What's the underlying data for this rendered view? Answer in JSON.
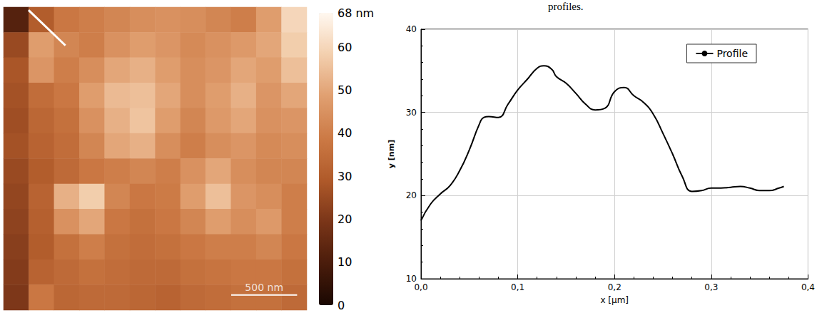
{
  "caption": "profiles.",
  "afm_image": {
    "type": "heatmap",
    "image_size_nm": 2300,
    "heights_nm": [
      [
        12,
        30,
        38,
        40,
        42,
        44,
        45,
        44,
        42,
        40,
        48,
        60
      ],
      [
        25,
        48,
        42,
        40,
        45,
        48,
        46,
        43,
        45,
        47,
        50,
        58
      ],
      [
        28,
        46,
        40,
        44,
        50,
        52,
        48,
        44,
        46,
        50,
        48,
        55
      ],
      [
        27,
        35,
        38,
        48,
        54,
        55,
        50,
        44,
        48,
        52,
        46,
        50
      ],
      [
        26,
        33,
        36,
        45,
        52,
        56,
        48,
        42,
        47,
        50,
        45,
        46
      ],
      [
        27,
        32,
        35,
        42,
        50,
        52,
        44,
        40,
        44,
        46,
        43,
        44
      ],
      [
        25,
        30,
        34,
        38,
        40,
        42,
        40,
        45,
        50,
        44,
        42,
        42
      ],
      [
        24,
        32,
        52,
        58,
        42,
        38,
        39,
        48,
        55,
        46,
        44,
        40
      ],
      [
        23,
        31,
        45,
        50,
        38,
        36,
        38,
        42,
        48,
        44,
        47,
        40
      ],
      [
        22,
        30,
        36,
        40,
        36,
        35,
        36,
        38,
        40,
        40,
        42,
        38
      ],
      [
        21,
        32,
        34,
        36,
        35,
        34,
        34,
        36,
        37,
        38,
        38,
        36
      ],
      [
        20,
        38,
        33,
        34,
        34,
        33,
        32,
        34,
        35,
        36,
        36,
        34
      ]
    ],
    "colorbar": {
      "range": [
        0,
        68
      ],
      "ticks": [
        0,
        10,
        20,
        30,
        40,
        50,
        60,
        {
          "value": 68,
          "label": "68 nm"
        }
      ]
    },
    "scale_bar": {
      "label": "500 nm",
      "length_nm": 500
    },
    "profile_line": {
      "start_nm": [
        189,
        22
      ],
      "end_nm": [
        469,
        291
      ],
      "color": "#ffffff"
    }
  },
  "chart_data": {
    "type": "line",
    "x_label": "x [µm]",
    "y_label": "y [nm]",
    "x": [
      0,
      0.01,
      0.02,
      0.03,
      0.04,
      0.05,
      0.06,
      0.065,
      0.07,
      0.08,
      0.09,
      0.1,
      0.11,
      0.12,
      0.127,
      0.135,
      0.14,
      0.15,
      0.16,
      0.17,
      0.18,
      0.19,
      0.2,
      0.21,
      0.22,
      0.23,
      0.24,
      0.25,
      0.26,
      0.27,
      0.28,
      0.29,
      0.3,
      0.31,
      0.32,
      0.33,
      0.34,
      0.35,
      0.36,
      0.37,
      0.375
    ],
    "series": [
      {
        "name": "Profile",
        "color": "#000000",
        "values": [
          17,
          19,
          20.2,
          21.2,
          23,
          25.5,
          28.5,
          29.4,
          29.5,
          29.4,
          31,
          32.7,
          34,
          35.3,
          35.6,
          35.2,
          34.3,
          33.5,
          32.3,
          31,
          30.3,
          30.5,
          32.5,
          33,
          32,
          31.2,
          29.8,
          27.5,
          25,
          22.3,
          20.5,
          20.6,
          20.9,
          20.9,
          21,
          21.1,
          20.9,
          20.6,
          20.6,
          20.9,
          21.1
        ]
      }
    ],
    "xlim": [
      0,
      0.4
    ],
    "ylim": [
      10,
      40
    ],
    "xticks": [
      {
        "value": 0,
        "label": "0,0"
      },
      {
        "value": 0.1,
        "label": "0,1"
      },
      {
        "value": 0.2,
        "label": "0,2"
      },
      {
        "value": 0.3,
        "label": "0,3"
      },
      {
        "value": 0.4,
        "label": "0,4"
      }
    ],
    "yticks": [
      10,
      20,
      30,
      40
    ],
    "grid": true,
    "legend": "upper right"
  }
}
